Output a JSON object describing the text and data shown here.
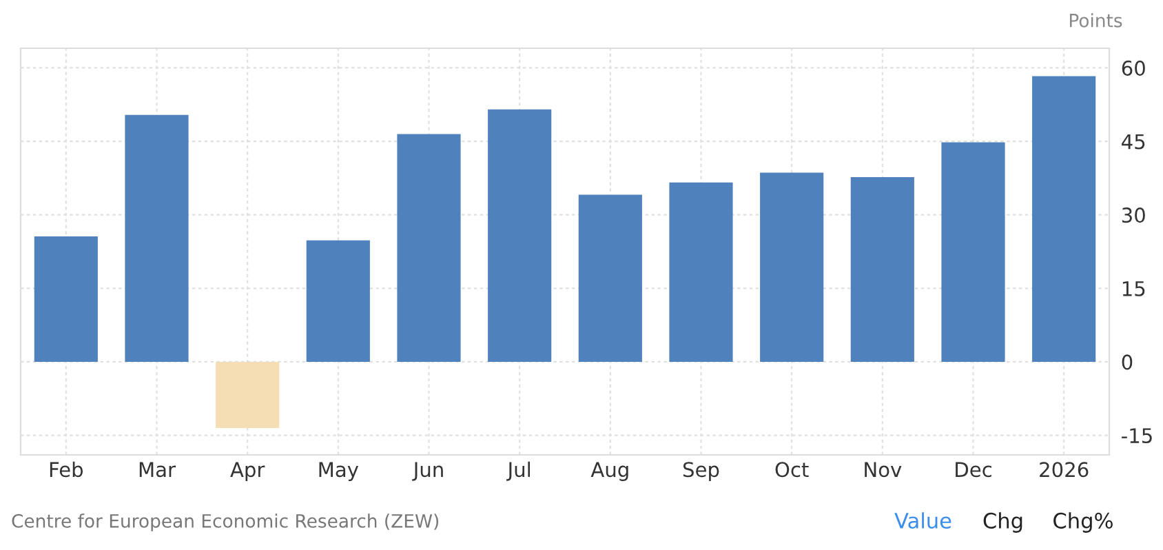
{
  "chart_data": {
    "type": "bar",
    "ylabel": "Points",
    "categories": [
      "Feb",
      "Mar",
      "Apr",
      "May",
      "Jun",
      "Jul",
      "Aug",
      "Sep",
      "Oct",
      "Nov",
      "Dec",
      "2026"
    ],
    "values": [
      25.6,
      50.4,
      -13.5,
      24.8,
      46.5,
      51.5,
      34.1,
      36.6,
      38.6,
      37.7,
      44.8,
      58.3
    ],
    "colors": [
      "#4f81bd",
      "#4f81bd",
      "#f5deb3",
      "#4f81bd",
      "#4f81bd",
      "#4f81bd",
      "#4f81bd",
      "#4f81bd",
      "#4f81bd",
      "#4f81bd",
      "#4f81bd",
      "#4f81bd"
    ],
    "ylim": [
      -19,
      64
    ],
    "yticks": [
      -15,
      0,
      15,
      30,
      45,
      60
    ],
    "grid": true,
    "legend": false,
    "annotations": [
      "Centre for European Economic Research (ZEW)",
      "Value",
      "Chg",
      "Chg%"
    ]
  }
}
